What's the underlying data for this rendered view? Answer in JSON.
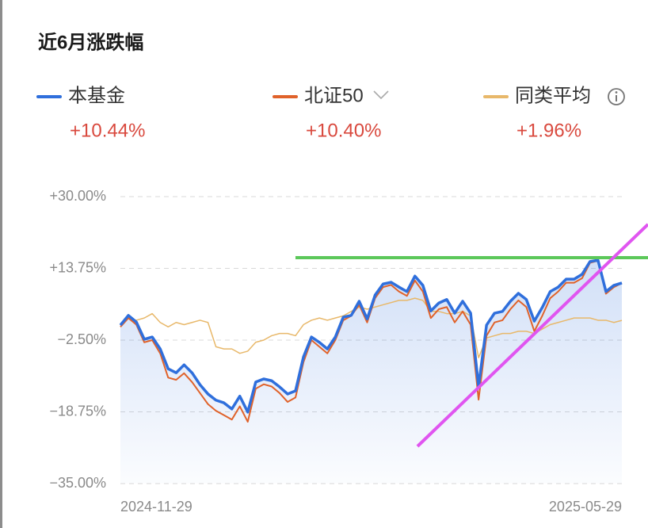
{
  "chart_data": {
    "type": "line",
    "title": "近6月涨跌幅",
    "categories": [
      "2024-11-29",
      null,
      null,
      null,
      null,
      null,
      null,
      null,
      null,
      null,
      null,
      null,
      null,
      null,
      null,
      null,
      null,
      null,
      null,
      null,
      null,
      null,
      null,
      null,
      null,
      null,
      null,
      null,
      null,
      null,
      null,
      null,
      null,
      null,
      null,
      null,
      null,
      null,
      null,
      null,
      null,
      null,
      null,
      null,
      null,
      null,
      null,
      null,
      null,
      null,
      null,
      null,
      null,
      null,
      null,
      null,
      null,
      null,
      null,
      null,
      null,
      null,
      null,
      "2025-05-29"
    ],
    "series": [
      {
        "name": "本基金",
        "color": "#2f6fdc",
        "change_label": "+10.44%",
        "values": [
          0.9,
          3.1,
          1.6,
          -2.3,
          -1.8,
          -4.5,
          -9.0,
          -9.9,
          -8.1,
          -9.9,
          -12.6,
          -14.7,
          -16.1,
          -16.7,
          -18.1,
          -15.2,
          -18.8,
          -12.0,
          -11.3,
          -11.7,
          -13.1,
          -14.7,
          -14.0,
          -6.3,
          -1.8,
          -3.0,
          -4.5,
          -1.8,
          2.7,
          3.1,
          6.3,
          2.3,
          7.7,
          10.2,
          10.6,
          9.5,
          8.5,
          12.0,
          9.9,
          4.1,
          5.9,
          6.7,
          3.6,
          6.3,
          3.6,
          -13.0,
          0.9,
          3.6,
          4.0,
          6.3,
          8.1,
          6.7,
          1.8,
          4.9,
          8.5,
          9.5,
          11.3,
          11.3,
          12.4,
          15.3,
          15.6,
          8.5,
          9.9,
          10.44
        ]
      },
      {
        "name": "北证50",
        "color": "#e0622a",
        "change_label": "+10.40%",
        "values": [
          0.5,
          2.5,
          1.0,
          -3.0,
          -2.5,
          -5.5,
          -11.0,
          -11.5,
          -10.0,
          -12.0,
          -14.5,
          -17.0,
          -18.5,
          -19.5,
          -20.5,
          -17.5,
          -21.0,
          -13.5,
          -12.5,
          -13.0,
          -14.5,
          -16.5,
          -15.5,
          -7.5,
          -2.5,
          -4.0,
          -5.5,
          -2.5,
          2.0,
          3.0,
          5.5,
          1.5,
          7.0,
          9.5,
          10.0,
          8.5,
          7.5,
          11.0,
          8.5,
          2.5,
          4.5,
          5.0,
          1.5,
          4.0,
          1.0,
          -16.0,
          -1.5,
          1.5,
          2.0,
          4.5,
          6.5,
          5.0,
          -0.5,
          3.0,
          7.0,
          8.5,
          10.5,
          10.5,
          11.5,
          15.0,
          15.5,
          8.0,
          9.5,
          10.4
        ]
      },
      {
        "name": "同类平均",
        "color": "#e8b86a",
        "change_label": "+1.96%",
        "values": [
          1.0,
          2.5,
          2.0,
          2.5,
          3.5,
          1.5,
          0.5,
          1.5,
          1.0,
          1.5,
          2.0,
          1.5,
          -4.0,
          -4.5,
          -4.5,
          -5.5,
          -5.0,
          -3.0,
          -2.5,
          -1.5,
          -1.0,
          -1.0,
          -1.5,
          1.0,
          2.0,
          2.5,
          2.0,
          2.5,
          3.0,
          4.0,
          5.0,
          4.5,
          5.0,
          5.5,
          6.0,
          6.5,
          6.5,
          7.0,
          6.5,
          4.0,
          4.0,
          3.5,
          3.5,
          4.0,
          3.0,
          -6.5,
          -2.0,
          -1.5,
          -1.0,
          -1.0,
          -0.5,
          -0.5,
          -1.0,
          0.0,
          1.0,
          1.5,
          2.0,
          2.5,
          2.5,
          2.5,
          2.0,
          2.0,
          1.5,
          1.96
        ]
      }
    ],
    "ylim": [
      -35,
      30
    ],
    "yticks": [
      {
        "value": 30,
        "label": "+30.00%"
      },
      {
        "value": 13.75,
        "label": "+13.75%"
      },
      {
        "value": -2.5,
        "label": "−2.50%"
      },
      {
        "value": -18.75,
        "label": "−18.75%"
      },
      {
        "value": -35,
        "label": "−35.00%"
      }
    ],
    "grid": true
  }
}
